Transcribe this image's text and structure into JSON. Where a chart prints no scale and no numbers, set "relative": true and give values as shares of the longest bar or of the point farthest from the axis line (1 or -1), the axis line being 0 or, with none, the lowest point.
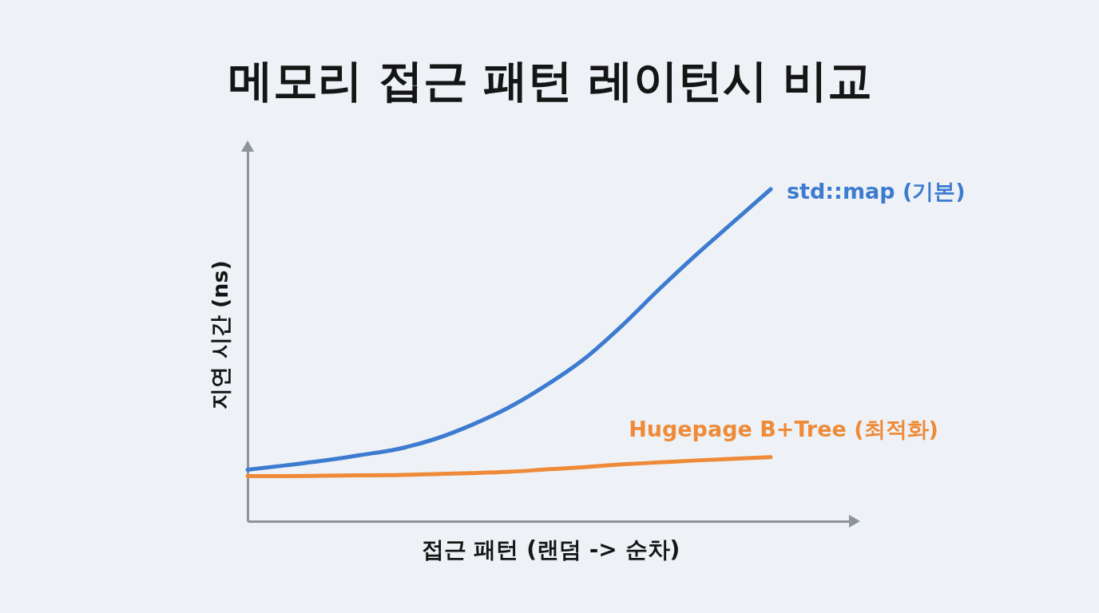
{
  "chart_data": {
    "type": "line",
    "title": "메모리 접근 패턴 레이턴시 비교",
    "xlabel": "접근 패턴 (랜덤 -> 순차)",
    "ylabel": "지연 시간 (ns)",
    "relative": true,
    "categories": [
      null,
      null,
      null,
      null,
      null,
      null,
      null,
      null,
      null,
      null,
      null,
      null,
      null,
      null,
      null
    ],
    "series": [
      {
        "name": "std::map (기본)",
        "color": "#3d7bd0",
        "values": [
          0.155,
          0.168,
          0.182,
          0.199,
          0.217,
          0.247,
          0.29,
          0.343,
          0.41,
          0.488,
          0.587,
          0.697,
          0.802,
          0.901,
          1
        ]
      },
      {
        "name": "Hugepage B+Tree (최적화)",
        "color": "#ee8a38",
        "values": [
          0.136,
          0.136,
          0.137,
          0.138,
          0.139,
          0.142,
          0.145,
          0.149,
          0.156,
          0.163,
          0.171,
          0.177,
          0.183,
          0.188,
          0.193
        ]
      }
    ],
    "legend": false,
    "grid": false,
    "tick_labels": false,
    "marker": "none",
    "line_style": "solid"
  }
}
